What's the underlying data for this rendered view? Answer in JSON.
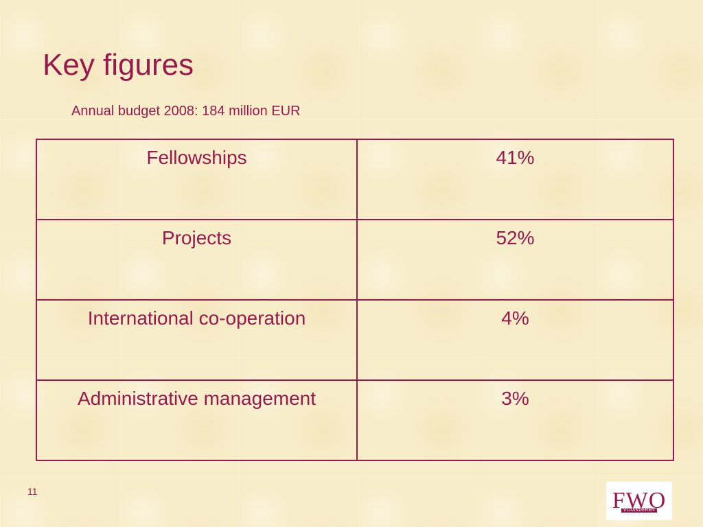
{
  "slide": {
    "title": "Key figures",
    "subtitle": "Annual budget 2008: 184 million EUR",
    "page_number": "11"
  },
  "table": {
    "rows": [
      {
        "label": "Fellowships",
        "value": "41%"
      },
      {
        "label": "Projects",
        "value": "52%"
      },
      {
        "label": "International co-operation",
        "value": "4%"
      },
      {
        "label": "Administrative management",
        "value": "3%"
      }
    ]
  },
  "logo": {
    "mark": "FWO",
    "sub": "VLAANDEREN"
  },
  "colors": {
    "accent": "#99194d",
    "background": "#f8edc9"
  }
}
